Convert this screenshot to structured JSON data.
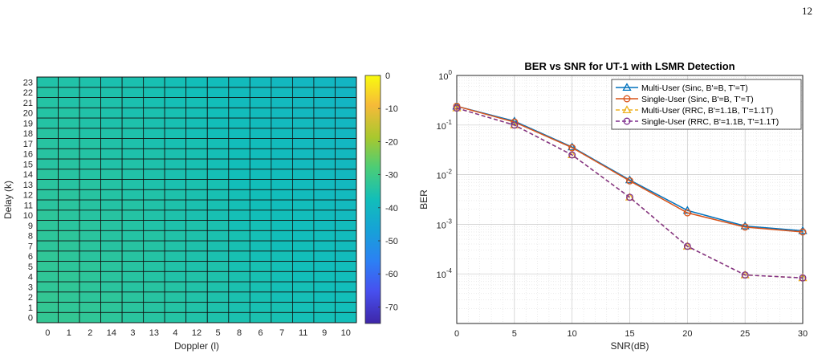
{
  "page_number": "12",
  "chart_data": [
    {
      "type": "heatmap",
      "xlabel": "Doppler (l)",
      "ylabel": "Delay (k)",
      "x_tick_labels": [
        "0",
        "1",
        "2",
        "14",
        "3",
        "13",
        "4",
        "12",
        "5",
        "8",
        "6",
        "7",
        "11",
        "9",
        "10"
      ],
      "y_tick_labels": [
        "0",
        "1",
        "2",
        "3",
        "4",
        "5",
        "6",
        "7",
        "8",
        "9",
        "10",
        "11",
        "12",
        "13",
        "14",
        "15",
        "16",
        "17",
        "18",
        "19",
        "20",
        "21",
        "22",
        "23"
      ],
      "colorbar": {
        "ticks": [
          "0",
          "-10",
          "-20",
          "-30",
          "-40",
          "-50",
          "-60",
          "-70"
        ],
        "min": -75,
        "max": 0,
        "colormap": "parula"
      },
      "grid": true,
      "values": [
        [
          -32,
          -32,
          -32.5,
          -33,
          -33.5,
          -34,
          -34.5,
          -35,
          -35.5,
          -36,
          -36,
          -36.5,
          -37,
          -37,
          -37.5
        ],
        [
          -32,
          -32.5,
          -32.5,
          -33,
          -33.5,
          -34,
          -34.5,
          -35,
          -35.5,
          -36,
          -36.5,
          -36.5,
          -37,
          -37,
          -37.5
        ],
        [
          -32,
          -32.5,
          -33,
          -33,
          -33.5,
          -34,
          -34.5,
          -35,
          -35.5,
          -36,
          -36.5,
          -37,
          -37,
          -37.5,
          -37.5
        ],
        [
          -32.5,
          -32.5,
          -33,
          -33.5,
          -34,
          -34,
          -34.5,
          -35,
          -35.5,
          -36,
          -36.5,
          -37,
          -37,
          -37.5,
          -38
        ],
        [
          -32.5,
          -32.5,
          -33,
          -33.5,
          -34,
          -34.5,
          -35,
          -35,
          -35.5,
          -36,
          -36.5,
          -37,
          -37.5,
          -37.5,
          -38
        ],
        [
          -32.5,
          -33,
          -33,
          -33.5,
          -34,
          -34.5,
          -35,
          -35.5,
          -35.5,
          -36.5,
          -36.5,
          -37,
          -37.5,
          -38,
          -38
        ],
        [
          -32.5,
          -33,
          -33.5,
          -33.5,
          -34,
          -34.5,
          -35,
          -35.5,
          -36,
          -36.5,
          -37,
          -37,
          -37.5,
          -38,
          -38.5
        ],
        [
          -33,
          -33,
          -33.5,
          -34,
          -34,
          -34.5,
          -35,
          -35.5,
          -36,
          -36.5,
          -37,
          -37.5,
          -37.5,
          -38,
          -38.5
        ],
        [
          -33,
          -33,
          -33.5,
          -34,
          -34.5,
          -34.5,
          -35,
          -35.5,
          -36,
          -36.5,
          -37,
          -37.5,
          -38,
          -38,
          -38.5
        ],
        [
          -33,
          -33.5,
          -33.5,
          -34,
          -34.5,
          -35,
          -35.5,
          -35.5,
          -36,
          -37,
          -37,
          -37.5,
          -38,
          -38.5,
          -38.5
        ],
        [
          -33,
          -33.5,
          -34,
          -34,
          -34.5,
          -35,
          -35.5,
          -36,
          -36.5,
          -37,
          -37.5,
          -37.5,
          -38,
          -38.5,
          -39
        ],
        [
          -33.5,
          -33.5,
          -34,
          -34.5,
          -34.5,
          -35,
          -35.5,
          -36,
          -36.5,
          -37,
          -37.5,
          -38,
          -38,
          -38.5,
          -39
        ],
        [
          -33.5,
          -33.5,
          -34,
          -34.5,
          -35,
          -35,
          -35.5,
          -36,
          -36.5,
          -37,
          -37.5,
          -38,
          -38.5,
          -39,
          -39
        ],
        [
          -33.5,
          -34,
          -34,
          -34.5,
          -35,
          -35.5,
          -36,
          -36,
          -36.5,
          -37.5,
          -37.5,
          -38,
          -38.5,
          -39,
          -39.5
        ],
        [
          -33.5,
          -34,
          -34.5,
          -34.5,
          -35,
          -35.5,
          -36,
          -36.5,
          -37,
          -37.5,
          -38,
          -38,
          -38.5,
          -39,
          -39.5
        ],
        [
          -34,
          -34,
          -34.5,
          -35,
          -35,
          -35.5,
          -36,
          -36.5,
          -37,
          -37.5,
          -38,
          -38.5,
          -39,
          -39,
          -39.5
        ],
        [
          -34,
          -34,
          -34.5,
          -35,
          -35.5,
          -35.5,
          -36,
          -36.5,
          -37,
          -37.5,
          -38,
          -38.5,
          -39,
          -39.5,
          -39.5
        ],
        [
          -34,
          -34.5,
          -34.5,
          -35,
          -35.5,
          -36,
          -36.5,
          -36.5,
          -37,
          -38,
          -38,
          -38.5,
          -39,
          -39.5,
          -40
        ],
        [
          -34,
          -34.5,
          -35,
          -35,
          -35.5,
          -36,
          -36.5,
          -37,
          -37.5,
          -38,
          -38.5,
          -38.5,
          -39,
          -39.5,
          -40
        ],
        [
          -34.5,
          -34.5,
          -35,
          -35.5,
          -35.5,
          -36,
          -36.5,
          -37,
          -37.5,
          -38,
          -38.5,
          -39,
          -39,
          -39.5,
          -40
        ],
        [
          -34.5,
          -34.5,
          -35,
          -35.5,
          -36,
          -36,
          -36.5,
          -37,
          -37.5,
          -38,
          -38.5,
          -39,
          -39.5,
          -40,
          -40
        ],
        [
          -34.5,
          -35,
          -35,
          -35.5,
          -36,
          -36.5,
          -37,
          -37,
          -37.5,
          -38.5,
          -38.5,
          -39,
          -39.5,
          -40,
          -40.5
        ],
        [
          -34.5,
          -35,
          -35.5,
          -35.5,
          -36,
          -36.5,
          -37,
          -37.5,
          -38,
          -38.5,
          -39,
          -39,
          -39.5,
          -40,
          -40.5
        ],
        [
          -35,
          -35,
          -35.5,
          -36,
          -36,
          -36.5,
          -37,
          -37.5,
          -38,
          -38.5,
          -39,
          -39.5,
          -40,
          -40,
          -40.5
        ]
      ]
    },
    {
      "type": "line",
      "title": "BER vs SNR for UT-1 with LSMR Detection",
      "xlabel": "SNR(dB)",
      "ylabel": "BER",
      "xlim": [
        0,
        30
      ],
      "ylim": [
        1e-05,
        1
      ],
      "yscale": "log",
      "x_ticks": [
        0,
        5,
        10,
        15,
        20,
        25,
        30
      ],
      "y_tick_labels": [
        {
          "base": "10",
          "exp": "0"
        },
        {
          "base": "10",
          "exp": "-1"
        },
        {
          "base": "10",
          "exp": "-2"
        },
        {
          "base": "10",
          "exp": "-3"
        },
        {
          "base": "10",
          "exp": "-4"
        }
      ],
      "grid": true,
      "legend_position": "top-right",
      "x": [
        0,
        5,
        10,
        15,
        20,
        25,
        30
      ],
      "series": [
        {
          "name": "Multi-User (Sinc, B'=B, T'=T)",
          "color": "#0072BD",
          "dash": "solid",
          "marker": "triangle",
          "values": [
            0.24,
            0.12,
            0.036,
            0.0078,
            0.0019,
            0.00092,
            0.00074
          ]
        },
        {
          "name": "Single-User (Sinc, B'=B, T'=T)",
          "color": "#D95319",
          "dash": "solid",
          "marker": "circle",
          "values": [
            0.24,
            0.115,
            0.035,
            0.0075,
            0.0017,
            0.00088,
            0.0007
          ]
        },
        {
          "name": "Multi-User (RRC, B'=1.1B, T'=1.1T)",
          "color": "#EDB120",
          "dash": "dashed",
          "marker": "triangle",
          "values": [
            0.22,
            0.1,
            0.025,
            0.0035,
            0.00036,
            9.5e-05,
            8.3e-05
          ]
        },
        {
          "name": "Single-User (RRC, B'=1.1B, T'=1.1T)",
          "color": "#7E2F8E",
          "dash": "dashed",
          "marker": "circle",
          "values": [
            0.22,
            0.1,
            0.025,
            0.0035,
            0.00036,
            9.5e-05,
            8.3e-05
          ]
        }
      ]
    }
  ]
}
